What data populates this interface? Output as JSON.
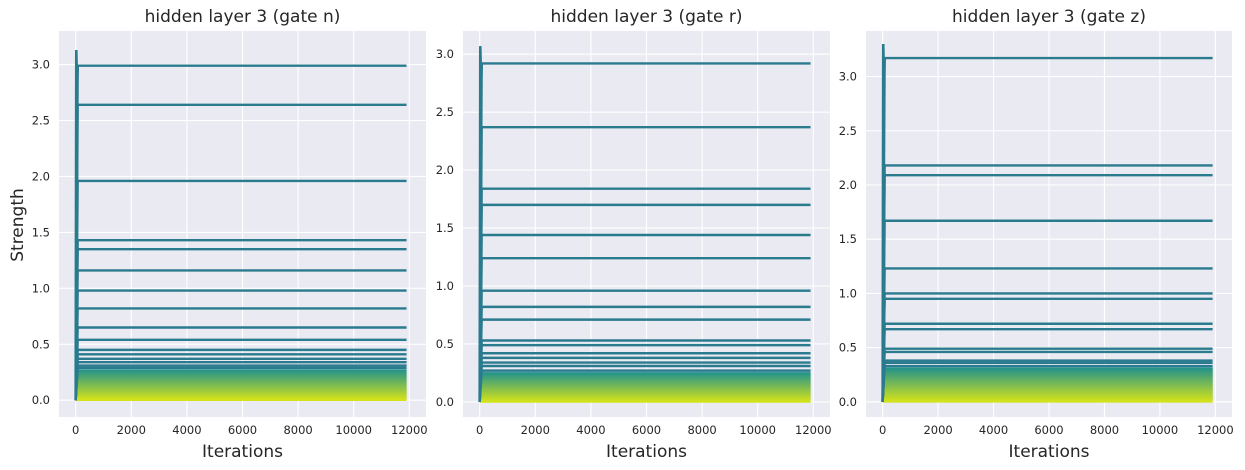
{
  "ylabel": "Strength",
  "colors": {
    "background": "#eaeaf2",
    "grid": "#ffffff",
    "line": "#2a7b8e",
    "low_top": "#22928c",
    "low_bottom": "#d2e21b"
  },
  "chart_data": [
    {
      "type": "line",
      "title": "hidden layer 3 (gate n)",
      "xlabel": "Iterations",
      "ylabel": "Strength",
      "xlim": [
        -600,
        12600
      ],
      "ylim": [
        -0.15,
        3.3
      ],
      "xticks": [
        0,
        2000,
        4000,
        6000,
        8000,
        10000,
        12000
      ],
      "yticks": [
        0.0,
        0.5,
        1.0,
        1.5,
        2.0,
        2.5,
        3.0
      ],
      "ytick_labels": [
        "0.0",
        "0.5",
        "1.0",
        "1.5",
        "2.0",
        "2.5",
        "3.0"
      ],
      "x_end": 11900,
      "spike_max": 3.13,
      "grid": true,
      "legend": "none",
      "series_final_values": [
        2.99,
        2.64,
        1.96,
        1.43,
        1.35,
        1.16,
        0.98,
        0.82,
        0.65,
        0.54,
        0.45,
        0.41,
        0.37,
        0.34,
        0.31,
        0.29
      ],
      "dense_band": [
        0.0,
        0.27
      ]
    },
    {
      "type": "line",
      "title": "hidden layer 3 (gate r)",
      "xlabel": "Iterations",
      "ylabel": "",
      "xlim": [
        -600,
        12600
      ],
      "ylim": [
        -0.13,
        3.2
      ],
      "xticks": [
        0,
        2000,
        4000,
        6000,
        8000,
        10000,
        12000
      ],
      "yticks": [
        0.0,
        0.5,
        1.0,
        1.5,
        2.0,
        2.5,
        3.0
      ],
      "ytick_labels": [
        "0.0",
        "0.5",
        "1.0",
        "1.5",
        "2.0",
        "2.5",
        "3.0"
      ],
      "x_end": 11900,
      "spike_max": 3.07,
      "grid": true,
      "legend": "none",
      "series_final_values": [
        2.92,
        2.37,
        1.84,
        1.7,
        1.44,
        1.24,
        0.96,
        0.82,
        0.71,
        0.53,
        0.49,
        0.42,
        0.38,
        0.34,
        0.31,
        0.27
      ],
      "dense_band": [
        0.0,
        0.25
      ]
    },
    {
      "type": "line",
      "title": "hidden layer 3 (gate z)",
      "xlabel": "Iterations",
      "ylabel": "",
      "xlim": [
        -600,
        12600
      ],
      "ylim": [
        -0.14,
        3.42
      ],
      "xticks": [
        0,
        2000,
        4000,
        6000,
        8000,
        10000,
        12000
      ],
      "yticks": [
        0.0,
        0.5,
        1.0,
        1.5,
        2.0,
        2.5,
        3.0
      ],
      "ytick_labels": [
        "0.0",
        "0.5",
        "1.0",
        "1.5",
        "2.0",
        "2.5",
        "3.0"
      ],
      "x_end": 11900,
      "spike_max": 3.3,
      "grid": true,
      "legend": "none",
      "series_final_values": [
        3.17,
        2.18,
        2.09,
        1.67,
        1.23,
        1.0,
        0.95,
        0.72,
        0.67,
        0.49,
        0.46,
        0.38,
        0.36,
        0.33
      ],
      "dense_band": [
        0.0,
        0.31
      ]
    }
  ]
}
